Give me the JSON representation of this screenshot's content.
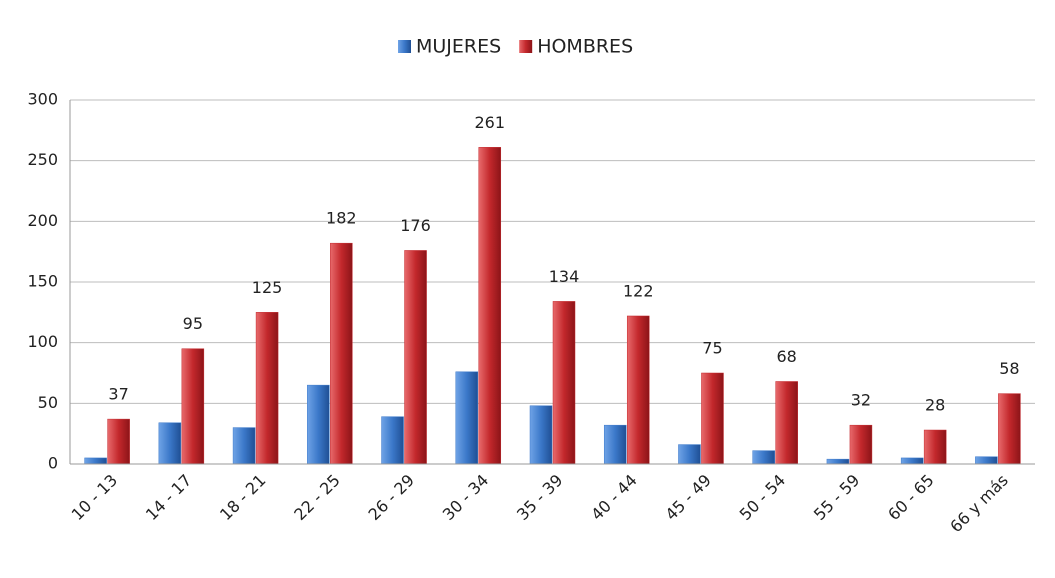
{
  "chart_data": {
    "type": "bar",
    "categories": [
      "10 - 13",
      "14 - 17",
      "18 - 21",
      "22 - 25",
      "26 - 29",
      "30 - 34",
      "35 - 39",
      "40 - 44",
      "45 - 49",
      "50 - 54",
      "55 - 59",
      "60 - 65",
      "66 y más"
    ],
    "series": [
      {
        "name": "MUJERES",
        "color": "#3b78c9",
        "values": [
          5,
          34,
          30,
          65,
          39,
          76,
          48,
          32,
          16,
          11,
          4,
          5,
          6
        ]
      },
      {
        "name": "HOMBRES",
        "color": "#c3282c",
        "values": [
          37,
          95,
          125,
          182,
          176,
          261,
          134,
          122,
          75,
          68,
          32,
          28,
          58
        ]
      }
    ],
    "ylim": [
      0,
      300
    ],
    "yticks": [
      0,
      50,
      100,
      150,
      200,
      250,
      300
    ],
    "grid": true,
    "legend": "top",
    "data_labels_series": "HOMBRES"
  }
}
